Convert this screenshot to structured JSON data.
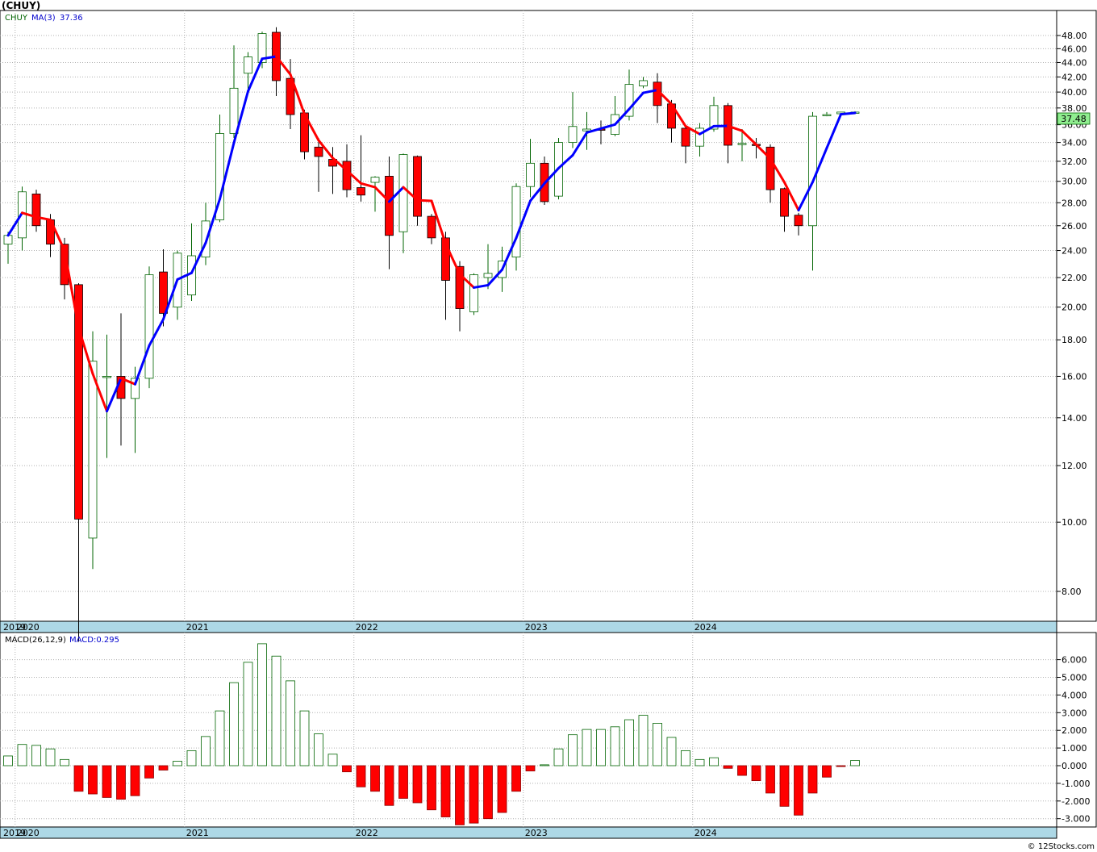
{
  "chart_data": [
    {
      "type": "candlestick",
      "title": "(CHUY)",
      "legend": {
        "symbol": "CHUY",
        "indicator": "MA(3)",
        "value": "37.36"
      },
      "last_price_label": "37.48",
      "y_scale": "log",
      "ylim": [
        7.0,
        51.0
      ],
      "y_ticks": [
        "8.00",
        "10.00",
        "12.00",
        "14.00",
        "16.00",
        "18.00",
        "20.00",
        "22.00",
        "24.00",
        "26.00",
        "28.00",
        "30.00",
        "32.00",
        "34.00",
        "36.00",
        "38.00",
        "40.00",
        "42.00",
        "44.00",
        "46.00",
        "48.00"
      ],
      "x_labels": [
        "2019",
        "2020",
        "2021",
        "2022",
        "2023",
        "2024"
      ],
      "up_color": "#ffffff",
      "up_edge": "#006400",
      "down_color": "#ff0000",
      "ma_up_color": "#0000ff",
      "ma_down_color": "#ff0000",
      "candles": [
        {
          "date": "2019-12",
          "o": 24.5,
          "h": 25.5,
          "l": 23.0,
          "c": 25.2
        },
        {
          "date": "2020-01",
          "o": 25.0,
          "h": 29.5,
          "l": 24.0,
          "c": 29.0
        },
        {
          "date": "2020-02",
          "o": 28.8,
          "h": 29.2,
          "l": 25.5,
          "c": 26.0
        },
        {
          "date": "2020-03",
          "o": 26.5,
          "h": 27.0,
          "l": 23.5,
          "c": 24.5
        },
        {
          "date": "2020-04",
          "o": 24.5,
          "h": 25.0,
          "l": 20.5,
          "c": 21.5
        },
        {
          "date": "2020-05",
          "o": 21.5,
          "h": 21.6,
          "l": 6.8,
          "c": 10.1
        },
        {
          "date": "2020-06",
          "o": 9.5,
          "h": 18.5,
          "l": 8.6,
          "c": 16.8
        },
        {
          "date": "2020-07",
          "o": 16.0,
          "h": 18.3,
          "l": 12.3,
          "c": 16.0
        },
        {
          "date": "2020-08",
          "o": 16.0,
          "h": 19.6,
          "l": 12.8,
          "c": 14.9
        },
        {
          "date": "2020-09",
          "o": 14.9,
          "h": 16.5,
          "l": 12.5,
          "c": 15.9
        },
        {
          "date": "2020-10",
          "o": 15.9,
          "h": 22.8,
          "l": 15.4,
          "c": 22.2
        },
        {
          "date": "2020-11",
          "o": 22.4,
          "h": 24.1,
          "l": 18.8,
          "c": 19.6
        },
        {
          "date": "2020-12",
          "o": 20.0,
          "h": 24.0,
          "l": 19.2,
          "c": 23.8
        },
        {
          "date": "2021-01",
          "o": 20.8,
          "h": 26.2,
          "l": 20.4,
          "c": 23.6
        },
        {
          "date": "2021-02",
          "o": 23.5,
          "h": 28.0,
          "l": 22.9,
          "c": 26.4
        },
        {
          "date": "2021-03",
          "o": 26.5,
          "h": 37.2,
          "l": 26.3,
          "c": 35.0
        },
        {
          "date": "2021-04",
          "o": 35.0,
          "h": 46.5,
          "l": 34.5,
          "c": 40.5
        },
        {
          "date": "2021-05",
          "o": 42.5,
          "h": 45.5,
          "l": 39.8,
          "c": 44.8
        },
        {
          "date": "2021-06",
          "o": 44.0,
          "h": 48.6,
          "l": 43.2,
          "c": 48.3
        },
        {
          "date": "2021-07",
          "o": 48.5,
          "h": 49.3,
          "l": 39.5,
          "c": 41.5
        },
        {
          "date": "2021-08",
          "o": 41.8,
          "h": 44.5,
          "l": 35.5,
          "c": 37.2
        },
        {
          "date": "2021-09",
          "o": 37.4,
          "h": 37.8,
          "l": 32.2,
          "c": 33.0
        },
        {
          "date": "2021-10",
          "o": 33.5,
          "h": 34.5,
          "l": 29.0,
          "c": 32.5
        },
        {
          "date": "2021-11",
          "o": 32.2,
          "h": 33.5,
          "l": 28.8,
          "c": 31.5
        },
        {
          "date": "2021-12",
          "o": 32.0,
          "h": 33.8,
          "l": 28.5,
          "c": 29.2
        },
        {
          "date": "2022-01",
          "o": 29.4,
          "h": 34.8,
          "l": 28.1,
          "c": 28.7
        },
        {
          "date": "2022-02",
          "o": 29.9,
          "h": 30.5,
          "l": 27.2,
          "c": 30.4
        },
        {
          "date": "2022-03",
          "o": 30.5,
          "h": 32.5,
          "l": 22.6,
          "c": 25.2
        },
        {
          "date": "2022-04",
          "o": 25.5,
          "h": 32.8,
          "l": 23.8,
          "c": 32.7
        },
        {
          "date": "2022-05",
          "o": 32.5,
          "h": 32.6,
          "l": 26.0,
          "c": 26.8
        },
        {
          "date": "2022-06",
          "o": 26.8,
          "h": 27.0,
          "l": 24.5,
          "c": 25.0
        },
        {
          "date": "2022-07",
          "o": 25.0,
          "h": 25.5,
          "l": 19.2,
          "c": 21.8
        },
        {
          "date": "2022-08",
          "o": 22.8,
          "h": 23.2,
          "l": 18.5,
          "c": 19.9
        },
        {
          "date": "2022-09",
          "o": 19.7,
          "h": 22.3,
          "l": 19.5,
          "c": 22.2
        },
        {
          "date": "2022-10",
          "o": 22.0,
          "h": 24.5,
          "l": 21.2,
          "c": 22.3
        },
        {
          "date": "2022-11",
          "o": 22.0,
          "h": 24.3,
          "l": 21.0,
          "c": 23.2
        },
        {
          "date": "2022-12",
          "o": 23.5,
          "h": 29.8,
          "l": 22.5,
          "c": 29.5
        },
        {
          "date": "2023-01",
          "o": 29.5,
          "h": 34.4,
          "l": 28.5,
          "c": 31.8
        },
        {
          "date": "2023-02",
          "o": 31.8,
          "h": 32.5,
          "l": 27.8,
          "c": 28.1
        },
        {
          "date": "2023-03",
          "o": 28.6,
          "h": 34.5,
          "l": 28.3,
          "c": 34.0
        },
        {
          "date": "2023-04",
          "o": 34.0,
          "h": 40.0,
          "l": 33.4,
          "c": 35.8
        },
        {
          "date": "2023-05",
          "o": 35.3,
          "h": 37.5,
          "l": 33.2,
          "c": 35.5
        },
        {
          "date": "2023-06",
          "o": 35.5,
          "h": 36.5,
          "l": 33.8,
          "c": 35.4
        },
        {
          "date": "2023-07",
          "o": 34.9,
          "h": 39.5,
          "l": 34.7,
          "c": 37.2
        },
        {
          "date": "2023-08",
          "o": 37.0,
          "h": 43.0,
          "l": 36.5,
          "c": 41.0
        },
        {
          "date": "2023-09",
          "o": 40.8,
          "h": 42.0,
          "l": 40.5,
          "c": 41.5
        },
        {
          "date": "2023-10",
          "o": 41.3,
          "h": 42.5,
          "l": 36.2,
          "c": 38.3
        },
        {
          "date": "2023-11",
          "o": 38.5,
          "h": 39.0,
          "l": 34.0,
          "c": 35.6
        },
        {
          "date": "2023-12",
          "o": 35.6,
          "h": 36.0,
          "l": 31.8,
          "c": 33.6
        },
        {
          "date": "2024-01",
          "o": 33.6,
          "h": 36.2,
          "l": 32.5,
          "c": 35.6
        },
        {
          "date": "2024-02",
          "o": 35.5,
          "h": 39.4,
          "l": 35.2,
          "c": 38.3
        },
        {
          "date": "2024-03",
          "o": 38.3,
          "h": 38.6,
          "l": 31.8,
          "c": 33.7
        },
        {
          "date": "2024-04",
          "o": 33.8,
          "h": 35.5,
          "l": 32.0,
          "c": 33.9
        },
        {
          "date": "2024-05",
          "o": 33.8,
          "h": 34.5,
          "l": 32.3,
          "c": 33.7
        },
        {
          "date": "2024-06",
          "o": 33.5,
          "h": 33.8,
          "l": 28.0,
          "c": 29.2
        },
        {
          "date": "2024-07",
          "o": 29.3,
          "h": 29.4,
          "l": 25.5,
          "c": 26.8
        },
        {
          "date": "2024-08",
          "o": 26.9,
          "h": 27.1,
          "l": 25.2,
          "c": 26.0
        },
        {
          "date": "2024-09",
          "o": 26.0,
          "h": 37.5,
          "l": 22.5,
          "c": 37.0
        },
        {
          "date": "2024-10",
          "o": 37.2,
          "h": 37.5,
          "l": 37.0,
          "c": 37.2
        },
        {
          "date": "2024-11",
          "o": 37.3,
          "h": 37.5,
          "l": 37.2,
          "c": 37.5
        },
        {
          "date": "2024-12",
          "o": 37.4,
          "h": 37.6,
          "l": 37.4,
          "c": 37.5
        }
      ]
    },
    {
      "type": "bar",
      "title": "MACD(26,12,9)",
      "legend": {
        "indicator": "MACD(26,12,9)",
        "value": "MACD:0.295"
      },
      "ylim": [
        -3.45,
        7.0
      ],
      "y_ticks": [
        "-3.000",
        "-2.000",
        "-1.000",
        "0.000",
        "1.000",
        "2.000",
        "3.000",
        "4.000",
        "5.000",
        "6.000"
      ],
      "x_labels": [
        "2019",
        "2020",
        "2021",
        "2022",
        "2023",
        "2024"
      ],
      "positive_edge": "#006400",
      "negative_color": "#ff0000",
      "values": [
        0.55,
        1.2,
        1.15,
        0.95,
        0.35,
        -1.45,
        -1.6,
        -1.8,
        -1.9,
        -1.7,
        -0.7,
        -0.25,
        0.25,
        0.85,
        1.65,
        3.1,
        4.7,
        5.85,
        6.9,
        6.2,
        4.8,
        3.1,
        1.8,
        0.65,
        -0.35,
        -1.2,
        -1.45,
        -2.25,
        -1.85,
        -2.1,
        -2.5,
        -2.9,
        -3.35,
        -3.25,
        -3.0,
        -2.65,
        -1.45,
        -0.3,
        0.05,
        0.95,
        1.75,
        2.05,
        2.05,
        2.2,
        2.6,
        2.85,
        2.4,
        1.6,
        0.85,
        0.35,
        0.45,
        -0.15,
        -0.55,
        -0.85,
        -1.55,
        -2.3,
        -2.8,
        -1.55,
        -0.65,
        -0.05,
        0.295
      ]
    }
  ],
  "watermark": "© 12Stocks.com"
}
